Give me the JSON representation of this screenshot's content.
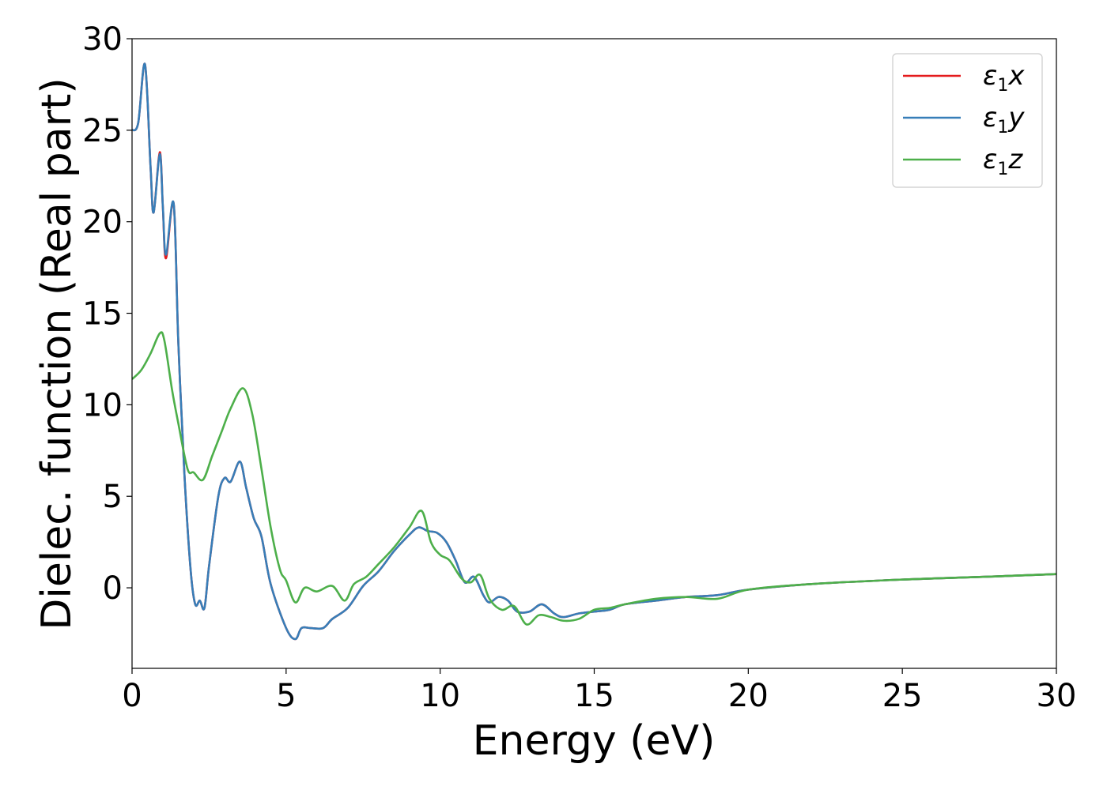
{
  "chart_data": {
    "type": "line",
    "xlabel": "Energy (eV)",
    "ylabel": "Dielec. function (Real part)",
    "xlim": [
      0,
      30
    ],
    "ylim": [
      -4.4,
      30
    ],
    "xticks": [
      0,
      5,
      10,
      15,
      20,
      25,
      30
    ],
    "yticks": [
      0,
      5,
      10,
      15,
      20,
      25,
      30
    ],
    "grid": false,
    "legend_position": "top-right",
    "series": [
      {
        "name": "ε1x",
        "legend": {
          "base": "ε",
          "sub": "1",
          "var": "x"
        },
        "color": "#e41a1c",
        "x": [
          0,
          0.2,
          0.42,
          0.6,
          0.7,
          0.9,
          1.0,
          1.1,
          1.35,
          1.5,
          1.7,
          1.9,
          2.05,
          2.2,
          2.35,
          2.5,
          2.8,
          3.0,
          3.2,
          3.5,
          3.7,
          3.95,
          4.2,
          4.5,
          5.0,
          5.3,
          5.5,
          5.8,
          6.2,
          6.5,
          7.0,
          7.5,
          8.0,
          8.5,
          9.0,
          9.3,
          9.6,
          9.9,
          10.2,
          10.5,
          10.8,
          11.1,
          11.4,
          11.6,
          11.9,
          12.2,
          12.5,
          12.9,
          13.3,
          13.7,
          14.0,
          14.5,
          15.0,
          15.5,
          16.0,
          17.0,
          18.0,
          19.0,
          20.0,
          22.0,
          25.0,
          28.0,
          30.0
        ],
        "y": [
          25.0,
          25.4,
          28.6,
          23.0,
          20.5,
          23.8,
          20.8,
          18.0,
          21.0,
          13.5,
          6.2,
          1.0,
          -0.9,
          -0.7,
          -1.1,
          1.2,
          5.0,
          6.0,
          5.8,
          6.9,
          5.5,
          3.8,
          2.8,
          0.2,
          -2.2,
          -2.8,
          -2.2,
          -2.2,
          -2.2,
          -1.7,
          -1.1,
          0.1,
          0.9,
          2.0,
          2.9,
          3.3,
          3.1,
          3.0,
          2.5,
          1.5,
          0.3,
          0.6,
          -0.4,
          -0.8,
          -0.5,
          -0.7,
          -1.3,
          -1.3,
          -0.9,
          -1.4,
          -1.6,
          -1.4,
          -1.3,
          -1.2,
          -0.9,
          -0.7,
          -0.5,
          -0.4,
          -0.1,
          0.2,
          0.45,
          0.62,
          0.75
        ]
      },
      {
        "name": "ε1y",
        "legend": {
          "base": "ε",
          "sub": "1",
          "var": "y"
        },
        "color": "#377eb8",
        "x": [
          0,
          0.2,
          0.42,
          0.6,
          0.7,
          0.9,
          1.0,
          1.1,
          1.35,
          1.5,
          1.7,
          1.9,
          2.05,
          2.2,
          2.35,
          2.5,
          2.8,
          3.0,
          3.2,
          3.5,
          3.7,
          3.95,
          4.2,
          4.5,
          5.0,
          5.3,
          5.5,
          5.8,
          6.2,
          6.5,
          7.0,
          7.5,
          8.0,
          8.5,
          9.0,
          9.3,
          9.6,
          9.9,
          10.2,
          10.5,
          10.8,
          11.1,
          11.4,
          11.6,
          11.9,
          12.2,
          12.5,
          12.9,
          13.3,
          13.7,
          14.0,
          14.5,
          15.0,
          15.5,
          16.0,
          17.0,
          18.0,
          19.0,
          20.0,
          22.0,
          25.0,
          28.0,
          30.0
        ],
        "y": [
          25.0,
          25.4,
          28.6,
          23.0,
          20.5,
          23.7,
          20.8,
          18.2,
          21.0,
          13.5,
          6.2,
          1.0,
          -0.9,
          -0.7,
          -1.1,
          1.2,
          5.0,
          6.0,
          5.8,
          6.9,
          5.5,
          3.8,
          2.8,
          0.2,
          -2.2,
          -2.8,
          -2.2,
          -2.2,
          -2.2,
          -1.7,
          -1.1,
          0.1,
          0.9,
          2.0,
          2.9,
          3.3,
          3.1,
          3.0,
          2.5,
          1.5,
          0.3,
          0.6,
          -0.4,
          -0.8,
          -0.5,
          -0.7,
          -1.3,
          -1.3,
          -0.9,
          -1.4,
          -1.6,
          -1.4,
          -1.3,
          -1.2,
          -0.9,
          -0.7,
          -0.5,
          -0.4,
          -0.1,
          0.2,
          0.45,
          0.62,
          0.75
        ]
      },
      {
        "name": "ε1z",
        "legend": {
          "base": "ε",
          "sub": "1",
          "var": "z"
        },
        "color": "#4daf4a",
        "x": [
          0,
          0.3,
          0.6,
          0.9,
          1.05,
          1.3,
          1.5,
          1.8,
          2.0,
          2.3,
          2.6,
          2.9,
          3.2,
          3.6,
          3.9,
          4.2,
          4.5,
          4.8,
          5.0,
          5.3,
          5.6,
          6.0,
          6.5,
          6.9,
          7.2,
          7.6,
          8.0,
          8.5,
          9.0,
          9.4,
          9.7,
          10.0,
          10.3,
          10.7,
          11.0,
          11.3,
          11.6,
          12.0,
          12.4,
          12.8,
          13.2,
          13.6,
          14.0,
          14.5,
          15.0,
          15.5,
          16.0,
          17.0,
          18.0,
          19.0,
          20.0,
          22.0,
          25.0,
          28.0,
          30.0
        ],
        "y": [
          11.4,
          11.9,
          12.8,
          13.9,
          13.5,
          10.8,
          9.0,
          6.5,
          6.3,
          5.9,
          7.2,
          8.5,
          9.8,
          10.9,
          9.5,
          6.5,
          3.3,
          1.0,
          0.4,
          -0.8,
          0.0,
          -0.2,
          0.1,
          -0.7,
          0.2,
          0.6,
          1.3,
          2.2,
          3.3,
          4.2,
          2.5,
          1.8,
          1.5,
          0.5,
          0.3,
          0.7,
          -0.6,
          -1.2,
          -1.0,
          -2.0,
          -1.5,
          -1.6,
          -1.8,
          -1.7,
          -1.2,
          -1.1,
          -0.9,
          -0.6,
          -0.5,
          -0.6,
          -0.1,
          0.2,
          0.45,
          0.62,
          0.75
        ]
      }
    ]
  }
}
